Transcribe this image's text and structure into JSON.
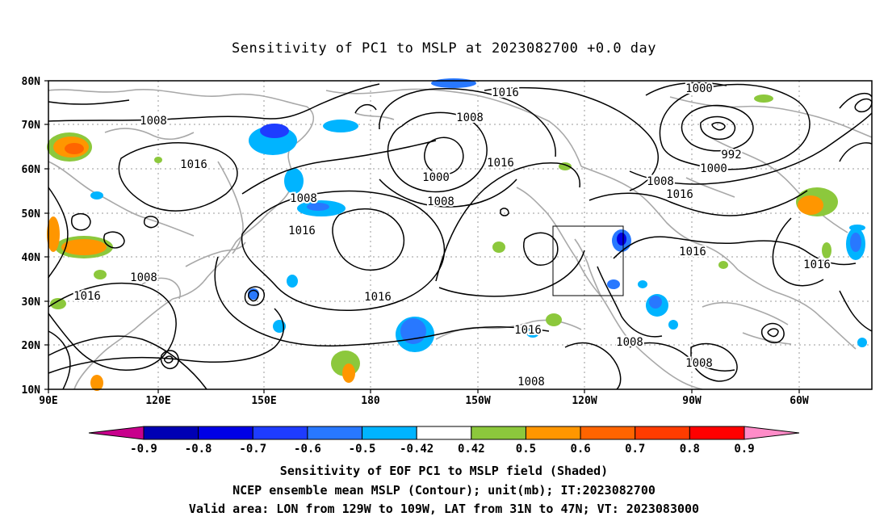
{
  "title": "Sensitivity of PC1 to MSLP at 2023082700 +0.0 day",
  "axes": {
    "lat_labels": [
      "80N",
      "70N",
      "60N",
      "50N",
      "40N",
      "30N",
      "20N",
      "10N"
    ],
    "lon_labels": [
      "90E",
      "120E",
      "150E",
      "180",
      "150W",
      "120W",
      "90W",
      "60W"
    ]
  },
  "contour_labels": [
    "1016",
    "1008",
    "1000",
    "1008",
    "1016",
    "1008",
    "1016",
    "1008",
    "1016",
    "1016",
    "1008",
    "1016",
    "1016",
    "1016",
    "1008",
    "1008",
    "1008",
    "1000",
    "992",
    "1000",
    "1008",
    "1016",
    "1016",
    "1016"
  ],
  "colorbar": {
    "labels": [
      "-0.9",
      "-0.8",
      "-0.7",
      "-0.6",
      "-0.5",
      "-0.42",
      "0.42",
      "0.5",
      "0.6",
      "0.7",
      "0.8",
      "0.9"
    ],
    "colors": [
      "#c8008c",
      "#0000b4",
      "#0000e6",
      "#1e3cff",
      "#2878ff",
      "#00b4ff",
      "#ffffff",
      "#8cc83c",
      "#ff9600",
      "#ff6400",
      "#ff3c00",
      "#ff0000",
      "#ff8cc8"
    ]
  },
  "shading_colors": {
    "blue_dark": "#0000e6",
    "blue_mid": "#1e3cff",
    "blue": "#2878ff",
    "cyan": "#00b4ff",
    "green": "#8cc83c",
    "orange": "#ff9600",
    "orange_dark": "#ff6400"
  },
  "caption": {
    "line1": "Sensitivity of EOF PC1 to MSLP field (Shaded)",
    "line2": "NCEP ensemble mean MSLP (Contour); unit(mb); IT:2023082700",
    "line3": "Valid area: LON from 129W to 109W, LAT from 31N to 47N; VT: 2023083000"
  }
}
